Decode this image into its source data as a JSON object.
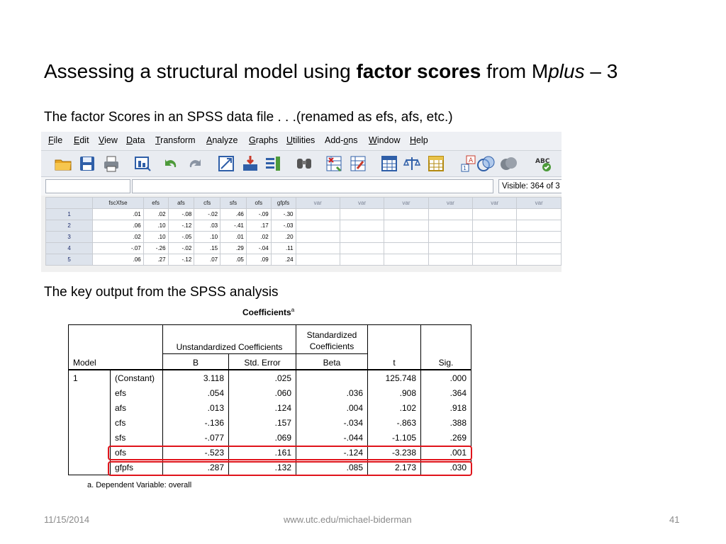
{
  "title": {
    "part1": "Assessing a structural model using ",
    "bold": "factor scores",
    "part2": " from M",
    "italic": "plus",
    "part3": " – 3"
  },
  "subtitle": "The factor Scores in an SPSS data file . . .(renamed as efs, afs, etc.)",
  "subtitle2": "The key output from the SPSS analysis",
  "spss": {
    "menu": [
      "File",
      "Edit",
      "View",
      "Data",
      "Transform",
      "Analyze",
      "Graphs",
      "Utilities",
      "Add-ons",
      "Window",
      "Help"
    ],
    "visible_label": "Visible: 364 of 3",
    "columns": [
      "fscXfse",
      "efs",
      "afs",
      "cfs",
      "sfs",
      "ofs",
      "gfpfs"
    ],
    "var_columns": [
      "var",
      "var",
      "var",
      "var",
      "var",
      "var"
    ],
    "rows": [
      {
        "n": "1",
        "cells": [
          ".01",
          ".02",
          "-.08",
          "-.02",
          ".46",
          "-.09",
          "-.30"
        ]
      },
      {
        "n": "2",
        "cells": [
          ".06",
          ".10",
          "-.12",
          ".03",
          "-.41",
          ".17",
          "-.03"
        ]
      },
      {
        "n": "3",
        "cells": [
          ".02",
          ".10",
          "-.05",
          ".10",
          ".01",
          ".02",
          ".20"
        ]
      },
      {
        "n": "4",
        "cells": [
          "-.07",
          "-.26",
          "-.02",
          ".15",
          ".29",
          "-.04",
          ".11"
        ]
      },
      {
        "n": "5",
        "cells": [
          ".06",
          ".27",
          "-.12",
          ".07",
          ".05",
          ".09",
          ".24"
        ]
      }
    ]
  },
  "coefficients": {
    "title": "Coefficients",
    "title_sup": "a",
    "header": {
      "model": "Model",
      "unstd": "Unstandardized Coefficients",
      "std": "Standardized Coefficients",
      "b": "B",
      "se": "Std. Error",
      "beta": "Beta",
      "t": "t",
      "sig": "Sig."
    },
    "model_number": "1",
    "rows": [
      {
        "name": "(Constant)",
        "b": "3.118",
        "se": ".025",
        "beta": "",
        "t": "125.748",
        "sig": ".000"
      },
      {
        "name": "efs",
        "b": ".054",
        "se": ".060",
        "beta": ".036",
        "t": ".908",
        "sig": ".364"
      },
      {
        "name": "afs",
        "b": ".013",
        "se": ".124",
        "beta": ".004",
        "t": ".102",
        "sig": ".918"
      },
      {
        "name": "cfs",
        "b": "-.136",
        "se": ".157",
        "beta": "-.034",
        "t": "-.863",
        "sig": ".388"
      },
      {
        "name": "sfs",
        "b": "-.077",
        "se": ".069",
        "beta": "-.044",
        "t": "-1.105",
        "sig": ".269"
      },
      {
        "name": "ofs",
        "b": "-.523",
        "se": ".161",
        "beta": "-.124",
        "t": "-3.238",
        "sig": ".001"
      },
      {
        "name": "gfpfs",
        "b": ".287",
        "se": ".132",
        "beta": ".085",
        "t": "2.173",
        "sig": ".030"
      }
    ],
    "footnote": "a. Dependent Variable: overall",
    "highlight_color": "#e0141b"
  },
  "footer": {
    "date": "11/15/2014",
    "url": "www.utc.edu/michael-biderman",
    "page": "41"
  }
}
